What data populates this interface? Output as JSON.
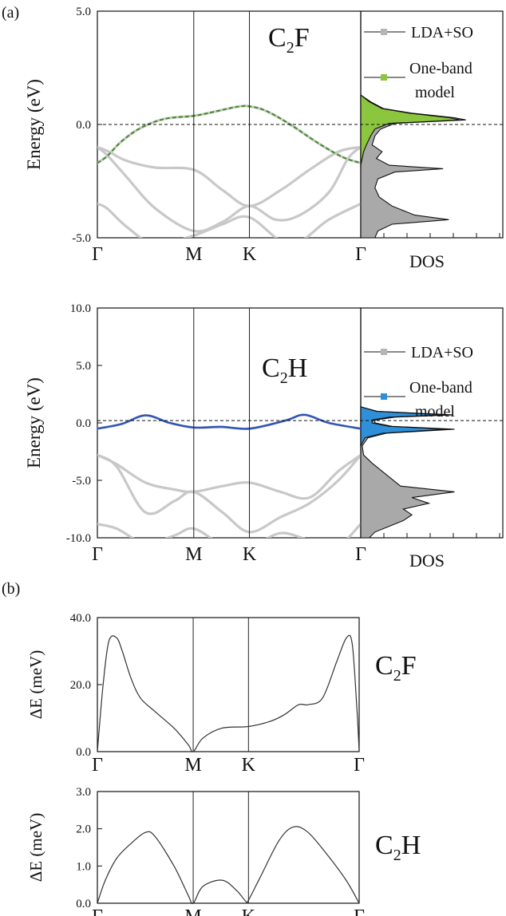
{
  "figure": {
    "panel_a_label": "(a)",
    "panel_b_label": "(b)"
  },
  "colors": {
    "lda_band": "#c8c8c8",
    "lda_dos": "#a9a9a9",
    "c2f_model": "#3f8f23",
    "c2f_model_fill": "#8cc63f",
    "c2h_model": "#2e55b8",
    "c2h_model_fill": "#2f8fd8",
    "axis": "#111111"
  },
  "chart_data": [
    {
      "type": "line",
      "title": "C₂F",
      "material_base": "C",
      "material_sub": "2",
      "material_tail": "F",
      "ylabel": "Energy (eV)",
      "ylim": [
        -5.0,
        5.0
      ],
      "yticks": [
        "5.0",
        "0.0",
        "-5.0"
      ],
      "k_labels": [
        "Γ",
        "M",
        "K",
        "Γ"
      ],
      "k_positions": [
        0,
        1,
        1.577,
        2.732
      ],
      "fermi_level": 0.0,
      "series": [
        {
          "name": "LDA+SO",
          "x": [
            0,
            0.1,
            0.25,
            0.45,
            0.7,
            1.0,
            1.2,
            1.45,
            1.577,
            1.75,
            2.0,
            2.3,
            2.55,
            2.732
          ],
          "values": [
            -1.7,
            -1.4,
            -0.75,
            -0.15,
            0.25,
            0.38,
            0.55,
            0.78,
            0.8,
            0.6,
            0.0,
            -0.85,
            -1.45,
            -1.7
          ]
        },
        {
          "name": "LDA+SO",
          "x": [
            0,
            0.12,
            0.3,
            0.6,
            1.0,
            1.3,
            1.577,
            1.9,
            2.2,
            2.5,
            2.732
          ],
          "values": [
            -1.0,
            -1.2,
            -1.6,
            -1.9,
            -2.0,
            -2.9,
            -3.6,
            -2.9,
            -2.0,
            -1.2,
            -1.0
          ]
        },
        {
          "name": "LDA+SO",
          "x": [
            0,
            0.1,
            0.3,
            0.6,
            1.0,
            1.3,
            1.577,
            1.85,
            2.1,
            2.4,
            2.6,
            2.732
          ],
          "values": [
            -1.0,
            -1.35,
            -2.3,
            -3.7,
            -4.7,
            -4.3,
            -3.6,
            -4.2,
            -4.0,
            -3.0,
            -1.5,
            -1.0
          ]
        },
        {
          "name": "LDA+SO",
          "x": [
            0,
            0.1,
            0.3,
            0.6,
            1.0,
            1.3,
            1.577,
            2.0,
            2.4,
            2.732
          ],
          "values": [
            -3.5,
            -3.7,
            -4.5,
            -5.3,
            -4.9,
            -4.4,
            -4.1,
            -5.3,
            -4.2,
            -3.5
          ]
        }
      ],
      "model_series": {
        "name": "One-band model",
        "x": [
          0,
          0.1,
          0.25,
          0.45,
          0.7,
          1.0,
          1.2,
          1.45,
          1.577,
          1.75,
          2.0,
          2.3,
          2.55,
          2.732
        ],
        "values": [
          -1.7,
          -1.4,
          -0.75,
          -0.15,
          0.25,
          0.38,
          0.55,
          0.78,
          0.8,
          0.6,
          0.0,
          -0.85,
          -1.45,
          -1.7
        ]
      },
      "dos_label": "DOS",
      "dos": {
        "energies": [
          1.3,
          1.0,
          0.7,
          0.5,
          0.3,
          0.2,
          0.05,
          -0.2,
          -0.5,
          -0.9,
          -1.2,
          -1.5,
          -1.8,
          -1.95,
          -2.1,
          -2.4,
          -2.8,
          -3.2,
          -3.6,
          -4.0,
          -4.2,
          -4.4,
          -4.7,
          -5.0
        ],
        "lda": [
          0.0,
          0.07,
          0.16,
          0.36,
          0.66,
          0.74,
          0.24,
          0.14,
          0.1,
          0.08,
          0.15,
          0.11,
          0.2,
          0.58,
          0.24,
          0.12,
          0.1,
          0.13,
          0.22,
          0.38,
          0.62,
          0.22,
          0.12,
          0.1
        ],
        "model": [
          0.0,
          0.06,
          0.15,
          0.34,
          0.62,
          0.7,
          0.2,
          0.1,
          0.07,
          0.04,
          0.02,
          0.01,
          0.0,
          0.0
        ]
      },
      "legend": [
        "LDA+SO",
        "One-band",
        "model"
      ]
    },
    {
      "type": "line",
      "title": "C₂H",
      "material_base": "C",
      "material_sub": "2",
      "material_tail": "H",
      "ylabel": "Energy (eV)",
      "ylim": [
        -10.0,
        10.0
      ],
      "yticks": [
        "10.0",
        "5.0",
        "0.0",
        "-5.0",
        "-10.0"
      ],
      "k_labels": [
        "Γ",
        "M",
        "K",
        "Γ"
      ],
      "k_positions": [
        0,
        1,
        1.577,
        2.732
      ],
      "fermi_level": 0.2,
      "series": [
        {
          "name": "LDA+SO",
          "x": [
            0,
            0.25,
            0.5,
            0.75,
            1.0,
            1.29,
            1.577,
            1.95,
            2.15,
            2.4,
            2.732
          ],
          "values": [
            -0.5,
            -0.1,
            0.65,
            0.0,
            -0.4,
            -0.35,
            -0.5,
            0.2,
            0.7,
            0.0,
            -0.5
          ]
        },
        {
          "name": "LDA+SO",
          "x": [
            0,
            0.2,
            0.5,
            0.8,
            1.0,
            1.3,
            1.577,
            1.9,
            2.2,
            2.5,
            2.732
          ],
          "values": [
            -2.8,
            -3.6,
            -5.2,
            -5.8,
            -6.0,
            -5.5,
            -5.2,
            -6.0,
            -6.5,
            -4.2,
            -2.8
          ]
        },
        {
          "name": "LDA+SO",
          "x": [
            0,
            0.2,
            0.5,
            0.8,
            1.0,
            1.3,
            1.577,
            1.9,
            2.2,
            2.5,
            2.732
          ],
          "values": [
            -2.8,
            -3.8,
            -7.8,
            -6.8,
            -6.0,
            -7.8,
            -9.5,
            -8.2,
            -7.0,
            -5.0,
            -2.8
          ]
        },
        {
          "name": "LDA+SO",
          "x": [
            0,
            0.2,
            0.5,
            0.8,
            1.0,
            1.3,
            1.577,
            1.9,
            2.2,
            2.5,
            2.732
          ],
          "values": [
            -8.8,
            -9.2,
            -10.5,
            -9.8,
            -9.2,
            -10.6,
            -10.8,
            -9.6,
            -10.2,
            -10.6,
            -8.8
          ]
        }
      ],
      "model_series": {
        "name": "One-band model",
        "x": [
          0,
          0.25,
          0.5,
          0.75,
          1.0,
          1.29,
          1.577,
          1.95,
          2.15,
          2.4,
          2.732
        ],
        "values": [
          -0.5,
          -0.1,
          0.65,
          0.0,
          -0.4,
          -0.35,
          -0.5,
          0.2,
          0.7,
          0.0,
          -0.5
        ]
      },
      "dos_label": "DOS",
      "dos": {
        "energies": [
          1.4,
          1.0,
          0.7,
          0.5,
          0.25,
          0.0,
          -0.3,
          -0.55,
          -0.9,
          -1.3,
          -2.0,
          -2.8,
          -3.5,
          -4.5,
          -5.5,
          -6.0,
          -6.5,
          -7.0,
          -7.5,
          -8.0,
          -8.5,
          -9.0,
          -9.5,
          -10.0
        ],
        "lda": [
          0.0,
          0.12,
          0.65,
          0.24,
          0.1,
          0.1,
          0.22,
          0.66,
          0.18,
          0.05,
          0.01,
          0.02,
          0.08,
          0.18,
          0.28,
          0.66,
          0.36,
          0.48,
          0.3,
          0.36,
          0.3,
          0.2,
          0.1,
          0.06
        ],
        "model": [
          0.0,
          0.11,
          0.6,
          0.2,
          0.08,
          0.08,
          0.2,
          0.6,
          0.15,
          0.03,
          0.0
        ]
      },
      "legend": [
        "LDA+SO",
        "One-band",
        "model"
      ]
    },
    {
      "type": "line",
      "title": "C₂F",
      "material_base": "C",
      "material_sub": "2",
      "material_tail": "F",
      "ylabel": "ΔE (meV)",
      "ylim": [
        0.0,
        40.0
      ],
      "yticks": [
        "40.0",
        "20.0",
        "0.0"
      ],
      "k_labels": [
        "Γ",
        "M",
        "K",
        "Γ"
      ],
      "k_positions": [
        0,
        1,
        1.577,
        2.732
      ],
      "series": [
        {
          "name": "ΔE",
          "x": [
            0,
            0.06,
            0.12,
            0.2,
            0.26,
            0.35,
            0.45,
            0.6,
            0.8,
            0.95,
            1.0,
            1.1,
            1.3,
            1.577,
            1.8,
            1.95,
            2.1,
            2.2,
            2.35,
            2.5,
            2.6,
            2.66,
            2.71,
            2.732
          ],
          "values": [
            0,
            20,
            33,
            34,
            30,
            22,
            16,
            12,
            7,
            2,
            0,
            4,
            7,
            7.5,
            9,
            11,
            14,
            14,
            16,
            27,
            34,
            32,
            12,
            0
          ]
        }
      ]
    },
    {
      "type": "line",
      "title": "C₂H",
      "material_base": "C",
      "material_sub": "2",
      "material_tail": "H",
      "ylabel": "ΔE (meV)",
      "ylim": [
        0.0,
        3.0
      ],
      "yticks": [
        "3.0",
        "2.0",
        "1.0",
        "0.0"
      ],
      "k_labels": [
        "Γ",
        "M",
        "K",
        "Γ"
      ],
      "k_positions": [
        0,
        1,
        1.577,
        2.732
      ],
      "series": [
        {
          "name": "ΔE",
          "x": [
            0,
            0.08,
            0.2,
            0.35,
            0.5,
            0.6,
            0.8,
            0.95,
            1.0,
            1.1,
            1.3,
            1.45,
            1.55,
            1.577,
            1.7,
            1.9,
            2.05,
            2.2,
            2.4,
            2.6,
            2.732
          ],
          "values": [
            0,
            0.6,
            1.2,
            1.6,
            1.9,
            1.8,
            1.0,
            0.2,
            0,
            0.45,
            0.62,
            0.35,
            0.05,
            0.08,
            0.7,
            1.7,
            2.05,
            1.9,
            1.3,
            0.6,
            0
          ]
        }
      ]
    }
  ]
}
